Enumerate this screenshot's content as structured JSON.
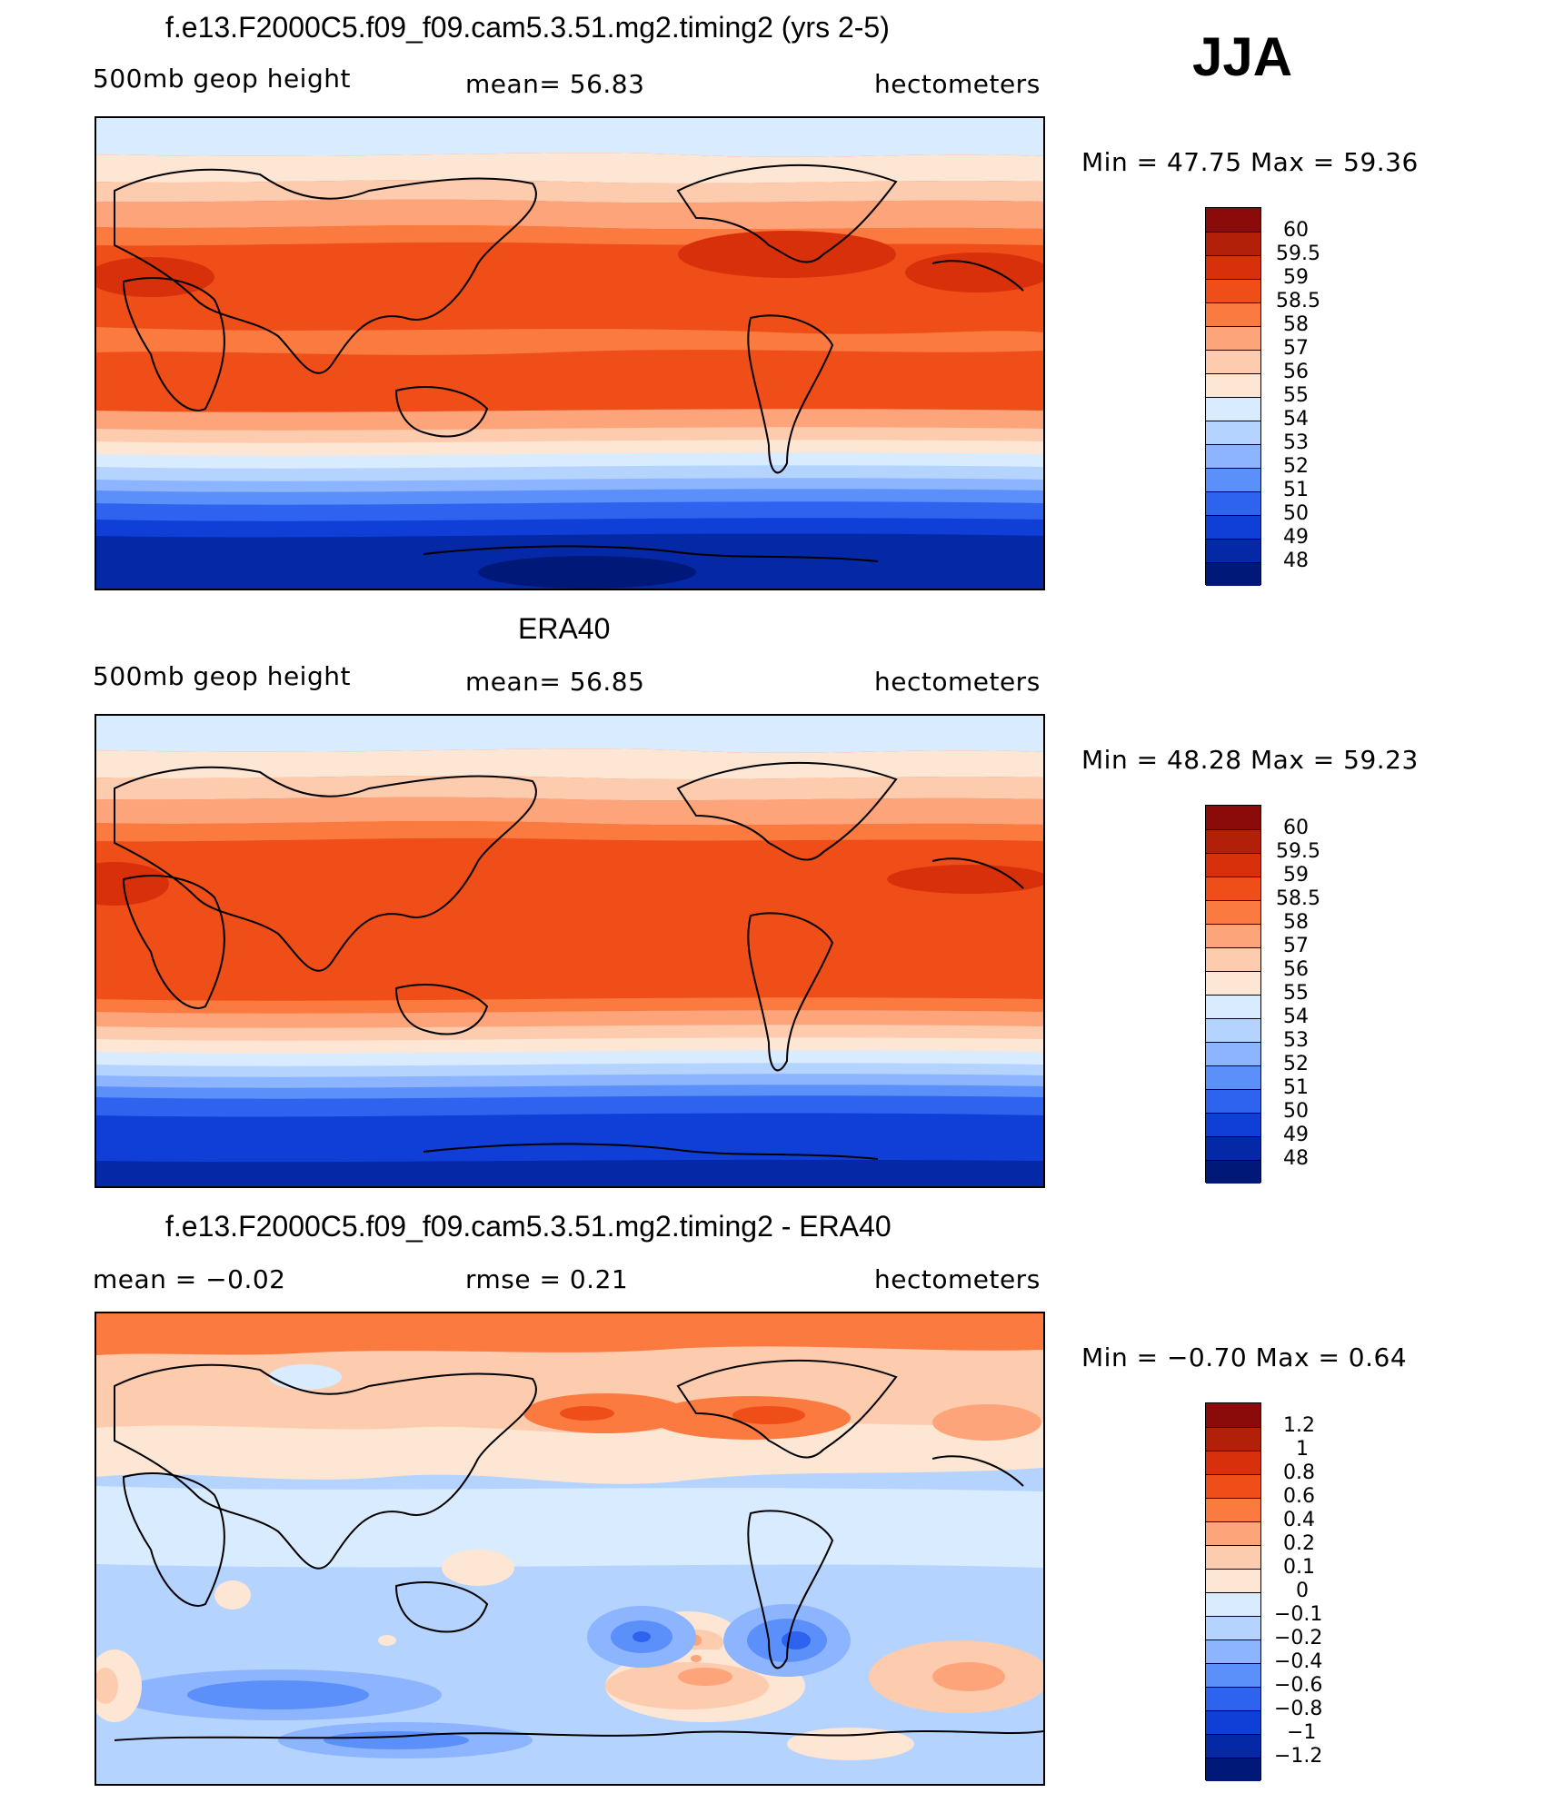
{
  "season_label": "JJA",
  "panels": [
    {
      "id": "model",
      "title": "f.e13.F2000C5.f09_f09.cam5.3.51.mg2.timing2 (yrs 2-5)",
      "left_label": "500mb  geop  height",
      "center_label": "mean=   56.83",
      "right_label": "hectometers",
      "minmax": "Min  =    47.75  Max  =    59.36",
      "colorbar": {
        "labels": [
          "60",
          "59.5",
          "59",
          "58.5",
          "58",
          "57",
          "56",
          "55",
          "54",
          "53",
          "52",
          "51",
          "50",
          "49",
          "48"
        ],
        "colors": [
          "#8b0a0a",
          "#b3200a",
          "#d9300c",
          "#f04e18",
          "#fb7a40",
          "#fda47a",
          "#fdcbad",
          "#fde6d3",
          "#d9ecff",
          "#b5d3ff",
          "#8cb4ff",
          "#5b8ff9",
          "#2d63ef",
          "#0f3fd6",
          "#0528a6",
          "#001878"
        ]
      }
    },
    {
      "id": "obs",
      "title": "ERA40",
      "left_label": "500mb  geop  height",
      "center_label": "mean=   56.85",
      "right_label": "hectometers",
      "minmax": "Min  =    48.28  Max  =    59.23",
      "colorbar": {
        "labels": [
          "60",
          "59.5",
          "59",
          "58.5",
          "58",
          "57",
          "56",
          "55",
          "54",
          "53",
          "52",
          "51",
          "50",
          "49",
          "48"
        ],
        "colors": [
          "#8b0a0a",
          "#b3200a",
          "#d9300c",
          "#f04e18",
          "#fb7a40",
          "#fda47a",
          "#fdcbad",
          "#fde6d3",
          "#d9ecff",
          "#b5d3ff",
          "#8cb4ff",
          "#5b8ff9",
          "#2d63ef",
          "#0f3fd6",
          "#0528a6",
          "#001878"
        ]
      }
    },
    {
      "id": "diff",
      "title": "f.e13.F2000C5.f09_f09.cam5.3.51.mg2.timing2 - ERA40",
      "left_label": "mean  =    −0.02",
      "center_label": "rmse  =     0.21",
      "right_label": "hectometers",
      "minmax": "Min  =    −0.70  Max  =     0.64",
      "colorbar": {
        "labels": [
          "1.2",
          "1",
          "0.8",
          "0.6",
          "0.4",
          "0.2",
          "0.1",
          "0",
          "−0.1",
          "−0.2",
          "−0.4",
          "−0.6",
          "−0.8",
          "−1",
          "−1.2"
        ],
        "colors": [
          "#8b0a0a",
          "#b3200a",
          "#d9300c",
          "#f04e18",
          "#fb7a40",
          "#fda47a",
          "#fdcbad",
          "#fde6d3",
          "#d9ecff",
          "#b5d3ff",
          "#8cb4ff",
          "#5b8ff9",
          "#2d63ef",
          "#0f3fd6",
          "#0528a6",
          "#001878"
        ]
      }
    }
  ]
}
